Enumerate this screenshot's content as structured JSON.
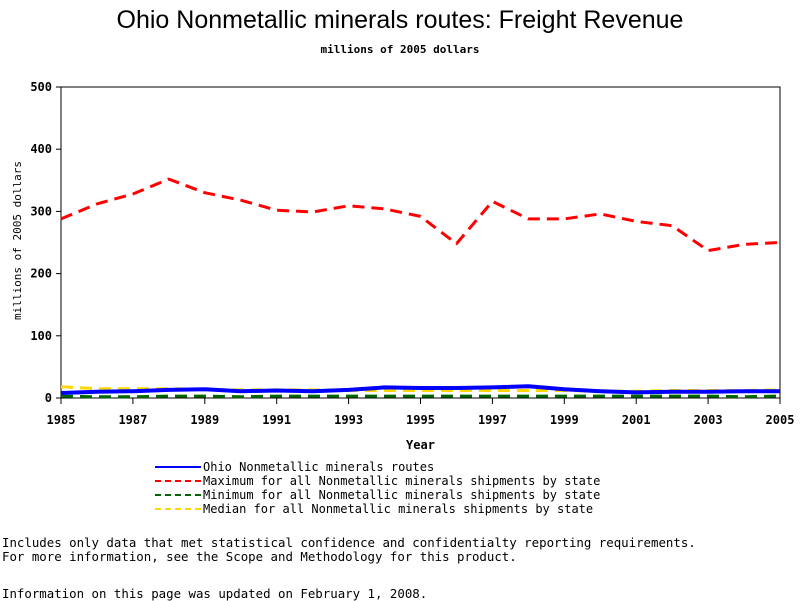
{
  "chart_data": {
    "type": "line",
    "title": "Ohio Nonmetallic minerals routes: Freight Revenue",
    "subtitle": "millions of 2005 dollars",
    "xlabel": "Year",
    "ylabel": "millions of 2005 dollars",
    "xlim": [
      1985,
      2005
    ],
    "ylim": [
      0,
      500
    ],
    "x_ticks": [
      "1985",
      "1987",
      "1989",
      "1991",
      "1993",
      "1995",
      "1997",
      "1999",
      "2001",
      "2003",
      "2005"
    ],
    "y_ticks": [
      "0",
      "100",
      "200",
      "300",
      "400",
      "500"
    ],
    "grid": false,
    "legend_position": "bottom",
    "x": [
      1985,
      1986,
      1987,
      1988,
      1989,
      1990,
      1991,
      1992,
      1993,
      1994,
      1995,
      1996,
      1997,
      1998,
      1999,
      2000,
      2001,
      2002,
      2003,
      2004,
      2005
    ],
    "series": [
      {
        "name": "Ohio Nonmetallic minerals routes",
        "color": "#0000ff",
        "dash": "solid",
        "values": [
          8,
          10,
          11,
          13,
          14,
          11,
          12,
          11,
          13,
          17,
          16,
          16,
          17,
          19,
          14,
          11,
          9,
          10,
          10,
          11,
          11
        ]
      },
      {
        "name": "Maximum for all Nonmetallic minerals shipments by state",
        "color": "#ff0000",
        "dash": "dashed",
        "values": [
          288,
          312,
          328,
          352,
          330,
          318,
          302,
          299,
          309,
          304,
          292,
          248,
          316,
          288,
          288,
          296,
          284,
          277,
          237,
          247,
          250
        ]
      },
      {
        "name": "Minimum for all Nonmetallic minerals shipments by state",
        "color": "#006400",
        "dash": "dashed",
        "values": [
          3,
          2,
          2,
          3,
          3,
          2,
          3,
          3,
          3,
          3,
          3,
          3,
          3,
          3,
          3,
          3,
          3,
          3,
          3,
          2,
          3
        ]
      },
      {
        "name": "Median for all Nonmetallic minerals shipments by state",
        "color": "#ffd700",
        "dash": "dashed",
        "values": [
          18,
          15,
          15,
          15,
          14,
          13,
          13,
          13,
          12,
          12,
          12,
          12,
          12,
          12,
          12,
          11,
          11,
          12,
          12,
          12,
          13
        ]
      }
    ]
  },
  "notes": {
    "line1": "Includes only data that met statistical confidence and confidentialty reporting requirements.",
    "line2": "For more information, see the Scope and Methodology for this product.",
    "updated": "Information on this page was updated on February 1, 2008."
  }
}
